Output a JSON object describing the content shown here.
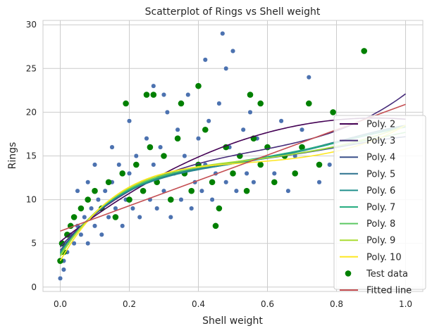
{
  "chart_data": {
    "type": "scatter",
    "title": "Scatterplot of Rings vs Shell weight",
    "xlabel": "Shell weight",
    "ylabel": "Rings",
    "xlim": [
      -0.05,
      1.05
    ],
    "ylim": [
      -0.5,
      30.5
    ],
    "xticks": [
      0.0,
      0.2,
      0.4,
      0.6,
      0.8,
      1.0
    ],
    "xtick_labels": [
      "0.0",
      "0.2",
      "0.4",
      "0.6",
      "0.8",
      "1.0"
    ],
    "yticks": [
      0,
      5,
      10,
      15,
      20,
      25,
      30
    ],
    "ytick_labels": [
      "0",
      "5",
      "10",
      "15",
      "20",
      "25",
      "30"
    ],
    "grid": true,
    "legend_position": "right",
    "colors": {
      "train_points": "#4c72b0",
      "test_points": "#008000",
      "fitted_line": "#c44e52",
      "poly": [
        "#440154",
        "#472c7a",
        "#3b518b",
        "#2c718e",
        "#21908d",
        "#27ad81",
        "#5cc863",
        "#aadc32",
        "#fde725"
      ]
    },
    "train_points": [
      [
        0.0,
        1
      ],
      [
        0.01,
        2
      ],
      [
        0.01,
        3
      ],
      [
        0.02,
        4
      ],
      [
        0.02,
        5
      ],
      [
        0.03,
        6
      ],
      [
        0.04,
        5
      ],
      [
        0.05,
        7
      ],
      [
        0.06,
        6
      ],
      [
        0.07,
        8
      ],
      [
        0.08,
        5
      ],
      [
        0.09,
        9
      ],
      [
        0.1,
        7
      ],
      [
        0.11,
        10
      ],
      [
        0.12,
        6
      ],
      [
        0.13,
        11
      ],
      [
        0.14,
        8
      ],
      [
        0.15,
        12
      ],
      [
        0.16,
        9
      ],
      [
        0.17,
        14
      ],
      [
        0.18,
        7
      ],
      [
        0.19,
        10
      ],
      [
        0.2,
        13
      ],
      [
        0.21,
        9
      ],
      [
        0.22,
        15
      ],
      [
        0.23,
        8
      ],
      [
        0.24,
        12
      ],
      [
        0.25,
        17
      ],
      [
        0.26,
        10
      ],
      [
        0.27,
        14
      ],
      [
        0.28,
        9
      ],
      [
        0.29,
        16
      ],
      [
        0.3,
        11
      ],
      [
        0.31,
        20
      ],
      [
        0.32,
        8
      ],
      [
        0.33,
        13
      ],
      [
        0.34,
        18
      ],
      [
        0.35,
        10
      ],
      [
        0.36,
        15
      ],
      [
        0.37,
        22
      ],
      [
        0.38,
        9
      ],
      [
        0.39,
        12
      ],
      [
        0.4,
        17
      ],
      [
        0.41,
        11
      ],
      [
        0.42,
        14
      ],
      [
        0.43,
        19
      ],
      [
        0.44,
        10
      ],
      [
        0.45,
        13
      ],
      [
        0.46,
        21
      ],
      [
        0.47,
        29
      ],
      [
        0.48,
        12
      ],
      [
        0.49,
        16
      ],
      [
        0.5,
        27
      ],
      [
        0.51,
        11
      ],
      [
        0.52,
        15
      ],
      [
        0.53,
        18
      ],
      [
        0.54,
        13
      ],
      [
        0.55,
        20
      ],
      [
        0.56,
        12
      ],
      [
        0.57,
        17
      ],
      [
        0.58,
        14
      ],
      [
        0.6,
        16
      ],
      [
        0.62,
        13
      ],
      [
        0.64,
        19
      ],
      [
        0.66,
        11
      ],
      [
        0.68,
        15
      ],
      [
        0.7,
        18
      ],
      [
        0.72,
        24
      ],
      [
        0.75,
        12
      ],
      [
        0.78,
        14
      ],
      [
        0.42,
        26
      ],
      [
        0.48,
        25
      ],
      [
        0.27,
        23
      ],
      [
        0.3,
        22
      ],
      [
        0.35,
        21
      ],
      [
        0.2,
        19
      ],
      [
        0.15,
        16
      ],
      [
        0.1,
        14
      ],
      [
        0.05,
        11
      ],
      [
        0.08,
        12
      ]
    ],
    "test_points": [
      [
        0.0,
        3
      ],
      [
        0.005,
        5
      ],
      [
        0.01,
        4
      ],
      [
        0.02,
        6
      ],
      [
        0.03,
        7
      ],
      [
        0.04,
        8
      ],
      [
        0.06,
        9
      ],
      [
        0.08,
        10
      ],
      [
        0.1,
        11
      ],
      [
        0.12,
        9
      ],
      [
        0.14,
        12
      ],
      [
        0.16,
        8
      ],
      [
        0.18,
        13
      ],
      [
        0.2,
        10
      ],
      [
        0.22,
        14
      ],
      [
        0.24,
        11
      ],
      [
        0.26,
        16
      ],
      [
        0.28,
        12
      ],
      [
        0.3,
        15
      ],
      [
        0.32,
        10
      ],
      [
        0.34,
        17
      ],
      [
        0.36,
        13
      ],
      [
        0.38,
        11
      ],
      [
        0.4,
        14
      ],
      [
        0.42,
        18
      ],
      [
        0.44,
        12
      ],
      [
        0.46,
        9
      ],
      [
        0.48,
        16
      ],
      [
        0.5,
        13
      ],
      [
        0.52,
        15
      ],
      [
        0.54,
        11
      ],
      [
        0.56,
        17
      ],
      [
        0.58,
        14
      ],
      [
        0.6,
        16
      ],
      [
        0.62,
        12
      ],
      [
        0.65,
        15
      ],
      [
        0.68,
        13
      ],
      [
        0.7,
        16
      ],
      [
        0.72,
        21
      ],
      [
        0.75,
        14
      ],
      [
        0.79,
        20
      ],
      [
        0.88,
        27
      ],
      [
        0.45,
        7
      ],
      [
        0.25,
        22
      ],
      [
        0.27,
        22
      ],
      [
        0.35,
        21
      ],
      [
        0.4,
        23
      ],
      [
        0.55,
        22
      ],
      [
        0.58,
        21
      ],
      [
        0.19,
        21
      ]
    ],
    "series": [
      {
        "name": "Poly. 2",
        "kind": "line",
        "coef": [
          5.2,
          31.0,
          -17.0
        ]
      },
      {
        "name": "Poly. 3",
        "kind": "line",
        "coef": [
          4.6,
          43.0,
          -63.0,
          37.5
        ]
      },
      {
        "name": "Poly. 4",
        "kind": "line",
        "coef": [
          4.2,
          52.0,
          -109.0,
          110.0,
          -40.0
        ]
      },
      {
        "name": "Poly. 5",
        "kind": "line",
        "coef": [
          4.0,
          55.0,
          -126.0,
          142.0,
          -60.0,
          3.5
        ]
      },
      {
        "name": "Poly. 6",
        "kind": "line",
        "coef": [
          3.9,
          57.0,
          -135.0,
          160.0,
          -78.0,
          10.5
        ]
      },
      {
        "name": "Poly. 7",
        "kind": "line",
        "coef": [
          3.8,
          59.0,
          -142.0,
          175.0,
          -95.0,
          17.5
        ]
      },
      {
        "name": "Poly. 8",
        "kind": "line",
        "coef": [
          3.7,
          61.0,
          -150.0,
          190.0,
          -112.0,
          25.0
        ]
      },
      {
        "name": "Poly. 9",
        "kind": "line",
        "coef": [
          3.5,
          64.0,
          -160.0,
          208.0,
          -133.0,
          36.0
        ]
      },
      {
        "name": "Poly. 10",
        "kind": "line",
        "coef": [
          3.0,
          70.0,
          -180.0,
          235.0,
          -155.0,
          45.5
        ]
      },
      {
        "name": "Test data",
        "kind": "points"
      },
      {
        "name": "Fitted line",
        "kind": "line",
        "coef": [
          6.4,
          14.5
        ]
      }
    ]
  }
}
